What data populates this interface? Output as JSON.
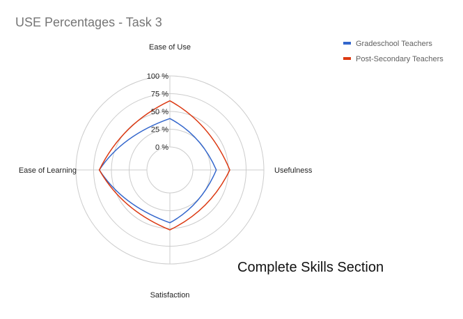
{
  "chart_data": {
    "type": "radar",
    "title": "USE Percentages - Task 3",
    "axes": [
      "Ease of Use",
      "Usefulness",
      "Satisfaction",
      "Ease of Learning"
    ],
    "ticks": [
      "0 %",
      "25 %",
      "50 %",
      "75 %",
      "100 %"
    ],
    "range": [
      0,
      100
    ],
    "grid": true,
    "legend": "top-right",
    "series": [
      {
        "name": "Gradeschool Teachers",
        "color": "#3366cc",
        "values": [
          40,
          33,
          42,
          67
        ]
      },
      {
        "name": "Post-Secondary Teachers",
        "color": "#dc3912",
        "values": [
          65,
          52,
          52,
          67
        ]
      }
    ],
    "annotation": "Complete Skills Section"
  }
}
